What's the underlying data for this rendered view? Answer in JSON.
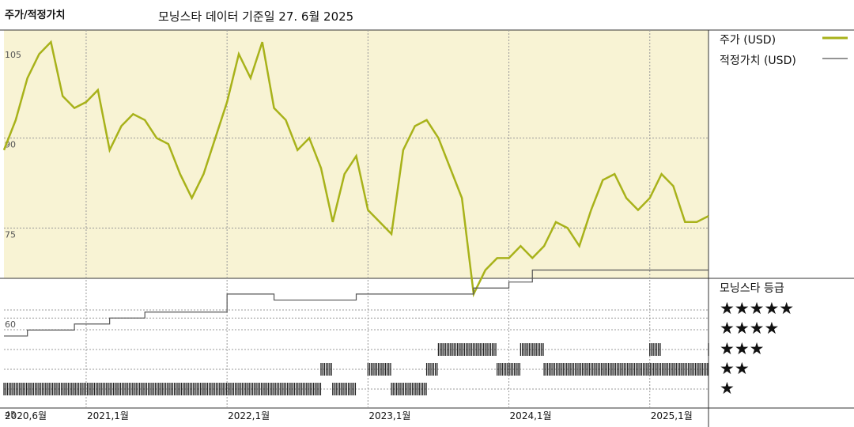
{
  "header": {
    "title": "주가/적정가치",
    "subtitle": "모닝스타 데이터 기준일 27. 6월 2025"
  },
  "legend": {
    "price_label": "주가 (USD)",
    "fair_value_label": "적정가치 (USD)",
    "price_color": "#a8b21a",
    "fair_value_color": "#555555"
  },
  "rating_panel": {
    "title": "모닝스타 등급",
    "levels": [
      "★★★★★",
      "★★★★",
      "★★★",
      "★★",
      "★"
    ]
  },
  "colors": {
    "upper_background": "#f8f3d4",
    "grid": "#999999",
    "rating_bars": "#222222"
  },
  "chart_data": {
    "type": "line",
    "y_axis": {
      "ticks": [
        "105",
        "90",
        "75",
        "60",
        "45"
      ],
      "ylim": [
        45,
        108
      ]
    },
    "x_axis": {
      "ticks": [
        "2020,6월",
        "2021,1월",
        "2022,1월",
        "2023,1월",
        "2024,1월",
        "2025,1월"
      ]
    },
    "x_range": [
      "2020-06",
      "2025-06"
    ],
    "series": [
      {
        "name": "주가 (USD)",
        "points": [
          [
            "2020-06",
            88
          ],
          [
            "2020-07",
            93
          ],
          [
            "2020-08",
            100
          ],
          [
            "2020-09",
            104
          ],
          [
            "2020-10",
            106
          ],
          [
            "2020-11",
            97
          ],
          [
            "2020-12",
            95
          ],
          [
            "2021-01",
            96
          ],
          [
            "2021-02",
            98
          ],
          [
            "2021-03",
            88
          ],
          [
            "2021-04",
            92
          ],
          [
            "2021-05",
            94
          ],
          [
            "2021-06",
            93
          ],
          [
            "2021-07",
            90
          ],
          [
            "2021-08",
            89
          ],
          [
            "2021-09",
            84
          ],
          [
            "2021-10",
            80
          ],
          [
            "2021-11",
            84
          ],
          [
            "2021-12",
            90
          ],
          [
            "2022-01",
            96
          ],
          [
            "2022-02",
            104
          ],
          [
            "2022-03",
            100
          ],
          [
            "2022-04",
            106
          ],
          [
            "2022-05",
            95
          ],
          [
            "2022-06",
            93
          ],
          [
            "2022-07",
            88
          ],
          [
            "2022-08",
            90
          ],
          [
            "2022-09",
            85
          ],
          [
            "2022-10",
            76
          ],
          [
            "2022-11",
            84
          ],
          [
            "2022-12",
            87
          ],
          [
            "2023-01",
            78
          ],
          [
            "2023-02",
            76
          ],
          [
            "2023-03",
            74
          ],
          [
            "2023-04",
            88
          ],
          [
            "2023-05",
            92
          ],
          [
            "2023-06",
            93
          ],
          [
            "2023-07",
            90
          ],
          [
            "2023-08",
            85
          ],
          [
            "2023-09",
            80
          ],
          [
            "2023-10",
            64
          ],
          [
            "2023-11",
            68
          ],
          [
            "2023-12",
            70
          ],
          [
            "2024-01",
            70
          ],
          [
            "2024-02",
            72
          ],
          [
            "2024-03",
            70
          ],
          [
            "2024-04",
            72
          ],
          [
            "2024-05",
            76
          ],
          [
            "2024-06",
            75
          ],
          [
            "2024-07",
            72
          ],
          [
            "2024-08",
            78
          ],
          [
            "2024-09",
            83
          ],
          [
            "2024-10",
            84
          ],
          [
            "2024-11",
            80
          ],
          [
            "2024-12",
            78
          ],
          [
            "2025-01",
            80
          ],
          [
            "2025-02",
            84
          ],
          [
            "2025-03",
            82
          ],
          [
            "2025-04",
            76
          ],
          [
            "2025-05",
            76
          ],
          [
            "2025-06",
            77
          ]
        ]
      },
      {
        "name": "적정가치 (USD)",
        "points": [
          [
            "2020-06",
            57
          ],
          [
            "2020-08",
            58
          ],
          [
            "2020-12",
            59
          ],
          [
            "2021-03",
            60
          ],
          [
            "2021-06",
            61
          ],
          [
            "2022-01",
            64
          ],
          [
            "2022-05",
            63
          ],
          [
            "2022-12",
            64
          ],
          [
            "2023-07",
            64
          ],
          [
            "2023-10",
            65
          ],
          [
            "2024-01",
            66
          ],
          [
            "2024-03",
            68
          ],
          [
            "2025-06",
            68
          ]
        ]
      }
    ],
    "rating_history": [
      {
        "start": "2020-06",
        "end": "2022-09",
        "stars": 1
      },
      {
        "start": "2022-09",
        "end": "2022-10",
        "stars": 2
      },
      {
        "start": "2022-10",
        "end": "2022-12",
        "stars": 1
      },
      {
        "start": "2023-01",
        "end": "2023-03",
        "stars": 2
      },
      {
        "start": "2023-03",
        "end": "2023-06",
        "stars": 1
      },
      {
        "start": "2023-06",
        "end": "2023-07",
        "stars": 2
      },
      {
        "start": "2023-07",
        "end": "2023-12",
        "stars": 3
      },
      {
        "start": "2023-12",
        "end": "2024-02",
        "stars": 2
      },
      {
        "start": "2024-02",
        "end": "2024-04",
        "stars": 3
      },
      {
        "start": "2024-04",
        "end": "2025-06",
        "stars": 2
      },
      {
        "start": "2025-01",
        "end": "2025-02",
        "stars": 3
      },
      {
        "start": "2025-06",
        "end": "2025-06",
        "stars": 3
      }
    ]
  }
}
